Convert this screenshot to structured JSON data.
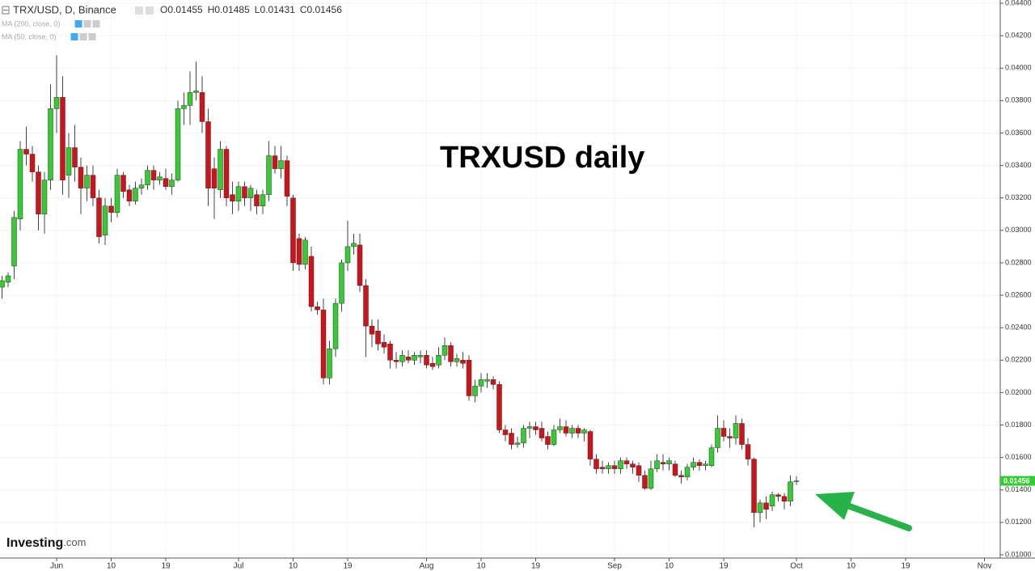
{
  "chart_data": {
    "type": "candlestick",
    "header": {
      "symbol": "TRX/USD, D, Binance",
      "ohlc": [
        "O0.01455",
        "H0.01485",
        "L0.01431",
        "C0.01456"
      ]
    },
    "indicators": [
      "MA (200, close, 0)",
      "MA (50, close, 0)"
    ],
    "annotation": "TRXUSD daily",
    "logo": {
      "name": "Investing",
      "suffix": ".com"
    },
    "last_price_label": "0.01456",
    "up_color": "#33cc33",
    "down_color": "#d0121b",
    "arrow_color": "#27b34a",
    "grid": true,
    "ylim": [
      0.0098,
      0.0442
    ],
    "yticks": [
      {
        "value": 0.044,
        "label": "0.04400"
      },
      {
        "value": 0.042,
        "label": "0.04200"
      },
      {
        "value": 0.04,
        "label": "0.04000"
      },
      {
        "value": 0.038,
        "label": "0.03800"
      },
      {
        "value": 0.036,
        "label": "0.03600"
      },
      {
        "value": 0.034,
        "label": "0.03400"
      },
      {
        "value": 0.032,
        "label": "0.03200"
      },
      {
        "value": 0.03,
        "label": "0.03000"
      },
      {
        "value": 0.028,
        "label": "0.02800"
      },
      {
        "value": 0.026,
        "label": "0.02600"
      },
      {
        "value": 0.024,
        "label": "0.02400"
      },
      {
        "value": 0.022,
        "label": "0.02200"
      },
      {
        "value": 0.02,
        "label": "0.02000"
      },
      {
        "value": 0.018,
        "label": "0.01800"
      },
      {
        "value": 0.016,
        "label": "0.01600"
      },
      {
        "value": 0.014,
        "label": "0.01400"
      },
      {
        "value": 0.012,
        "label": "0.01200"
      },
      {
        "value": 0.01,
        "label": "0.01000"
      }
    ],
    "categories": [
      null,
      null,
      null,
      null,
      null,
      null,
      null,
      null,
      null,
      "Jun",
      null,
      null,
      null,
      null,
      null,
      null,
      null,
      null,
      "10",
      null,
      null,
      null,
      null,
      null,
      null,
      null,
      null,
      "19",
      null,
      null,
      null,
      null,
      null,
      null,
      null,
      null,
      null,
      null,
      null,
      "Jul",
      null,
      null,
      null,
      null,
      null,
      null,
      null,
      null,
      "10",
      null,
      null,
      null,
      null,
      null,
      null,
      null,
      null,
      "19",
      null,
      null,
      null,
      null,
      null,
      null,
      null,
      null,
      null,
      null,
      null,
      null,
      "Aug",
      null,
      null,
      null,
      null,
      null,
      null,
      null,
      null,
      "10",
      null,
      null,
      null,
      null,
      null,
      null,
      null,
      null,
      "19",
      null,
      null,
      null,
      null,
      null,
      null,
      null,
      null,
      null,
      null,
      null,
      null,
      "Sep",
      null,
      null,
      null,
      null,
      null,
      null,
      null,
      null,
      "10",
      null,
      null,
      null,
      null,
      null,
      null,
      null,
      null,
      "19",
      null,
      null,
      null,
      null,
      null,
      null,
      null,
      null,
      null,
      null,
      null,
      "Oct",
      null,
      null,
      null,
      null,
      null,
      null,
      null,
      null,
      "10",
      null,
      null,
      null,
      null,
      null,
      null,
      null,
      null,
      "19",
      null,
      null,
      null,
      null,
      null,
      null,
      null,
      null,
      null,
      null,
      null,
      null,
      "Nov"
    ],
    "open": [
      0.0265,
      0.0268,
      0.0278,
      0.0307,
      0.035,
      0.0347,
      0.0336,
      0.031,
      0.0331,
      0.0375,
      0.0382,
      0.0334,
      0.0351,
      0.0339,
      0.0326,
      0.0334,
      0.032,
      0.0297,
      0.0315,
      0.0311,
      0.0334,
      0.0325,
      0.0318,
      0.0326,
      0.0328,
      0.0337,
      0.0331,
      0.0332,
      0.0327,
      0.0331,
      0.0375,
      0.0377,
      0.0385,
      0.0385,
      0.0367,
      0.0338,
      0.0325,
      0.035,
      0.0322,
      0.0318,
      0.0327,
      0.032,
      0.0322,
      0.0315,
      0.0322,
      0.0346,
      0.0338,
      0.0343,
      0.032,
      0.0295,
      0.0279,
      0.0284,
      0.0253,
      0.0251,
      0.0209,
      0.0227,
      0.0255,
      0.028,
      0.029,
      0.0291,
      0.0266,
      0.0241,
      0.0238,
      0.0231,
      0.023,
      0.022,
      0.0219,
      0.0222,
      0.022,
      0.0222,
      0.0223,
      0.0218,
      0.0217,
      0.0223,
      0.0229,
      0.0219,
      0.022,
      0.022,
      0.0198,
      0.0204,
      0.0207,
      0.0208,
      0.0205,
      0.0177,
      0.0175,
      0.0168,
      0.0169,
      0.0178,
      0.0179,
      0.0178,
      0.0173,
      0.0168,
      0.0177,
      0.0179,
      0.0175,
      0.0178,
      0.0175,
      0.0176,
      0.0159,
      0.0154,
      0.0153,
      0.0155,
      0.0153,
      0.0158,
      0.0156,
      0.0155,
      0.0149,
      0.0141,
      0.0153,
      0.0157,
      0.0156,
      0.0156,
      0.0149,
      0.0148,
      0.0154,
      0.0157,
      0.0155,
      0.0155,
      0.0166,
      0.0178,
      0.0173,
      0.0172,
      0.0181,
      0.0168,
      0.0159,
      0.0126,
      0.0132,
      0.013,
      0.0137,
      0.0136,
      0.0133,
      0.01455,
      null,
      null,
      null,
      null,
      null,
      null,
      null,
      null,
      null,
      null,
      null,
      null,
      null,
      null,
      null,
      null,
      null,
      null,
      null,
      null,
      null,
      null,
      null,
      null,
      null,
      null,
      null,
      null,
      null,
      null,
      null
    ],
    "high": [
      0.0272,
      0.0274,
      0.0312,
      0.0355,
      0.0364,
      0.0352,
      0.034,
      0.0336,
      0.039,
      0.0408,
      0.0395,
      0.036,
      0.0365,
      0.0345,
      0.034,
      0.034,
      0.0325,
      0.032,
      0.032,
      0.0338,
      0.0336,
      0.0328,
      0.033,
      0.0332,
      0.034,
      0.034,
      0.0336,
      0.0338,
      0.0335,
      0.038,
      0.0385,
      0.0398,
      0.0404,
      0.0395,
      0.0375,
      0.0345,
      0.0355,
      0.0352,
      0.033,
      0.033,
      0.033,
      0.0328,
      0.0325,
      0.0325,
      0.0355,
      0.0352,
      0.0352,
      0.0346,
      0.0322,
      0.0298,
      0.0296,
      0.029,
      0.0256,
      0.0258,
      0.0232,
      0.0258,
      0.0282,
      0.0306,
      0.0298,
      0.0298,
      0.027,
      0.0245,
      0.0245,
      0.0236,
      0.0232,
      0.0225,
      0.0226,
      0.0226,
      0.0225,
      0.0226,
      0.0226,
      0.0222,
      0.0228,
      0.0234,
      0.0231,
      0.0224,
      0.0225,
      0.0223,
      0.0208,
      0.0212,
      0.0212,
      0.021,
      0.0207,
      0.018,
      0.0178,
      0.0173,
      0.018,
      0.0182,
      0.0182,
      0.0182,
      0.0176,
      0.018,
      0.0184,
      0.0183,
      0.018,
      0.018,
      0.0178,
      0.0177,
      0.0162,
      0.0158,
      0.0157,
      0.0158,
      0.016,
      0.016,
      0.0158,
      0.0157,
      0.0152,
      0.0158,
      0.0162,
      0.0162,
      0.016,
      0.0158,
      0.0152,
      0.0156,
      0.016,
      0.0159,
      0.0158,
      0.0168,
      0.0186,
      0.0183,
      0.0178,
      0.0186,
      0.0184,
      0.0172,
      0.016,
      0.0134,
      0.0136,
      0.0139,
      0.0138,
      0.0138,
      0.0149,
      0.01485,
      null,
      null,
      null,
      null,
      null,
      null,
      null,
      null,
      null,
      null,
      null,
      null,
      null,
      null,
      null,
      null,
      null,
      null,
      null,
      null,
      null,
      null,
      null,
      null,
      null,
      null,
      null,
      null,
      null,
      null,
      null
    ],
    "low": [
      0.0258,
      0.0265,
      0.027,
      0.03,
      0.034,
      0.033,
      0.03,
      0.0298,
      0.0325,
      0.036,
      0.0322,
      0.032,
      0.033,
      0.031,
      0.0318,
      0.0315,
      0.0292,
      0.0291,
      0.0305,
      0.0308,
      0.032,
      0.0315,
      0.0316,
      0.0322,
      0.0325,
      0.0325,
      0.0328,
      0.0325,
      0.0322,
      0.033,
      0.0365,
      0.0365,
      0.038,
      0.036,
      0.0315,
      0.0307,
      0.032,
      0.0315,
      0.031,
      0.0312,
      0.0315,
      0.0312,
      0.031,
      0.031,
      0.0318,
      0.0335,
      0.0332,
      0.0315,
      0.0275,
      0.0275,
      0.0276,
      0.025,
      0.0248,
      0.0205,
      0.0205,
      0.0222,
      0.025,
      0.0275,
      0.0285,
      0.0262,
      0.0222,
      0.0228,
      0.0226,
      0.0224,
      0.0215,
      0.0215,
      0.0216,
      0.0218,
      0.0217,
      0.0218,
      0.0215,
      0.0214,
      0.0215,
      0.022,
      0.0216,
      0.0216,
      0.0215,
      0.0195,
      0.0194,
      0.02,
      0.0203,
      0.0202,
      0.0175,
      0.017,
      0.0165,
      0.0166,
      0.0166,
      0.0172,
      0.0174,
      0.017,
      0.0165,
      0.0167,
      0.0175,
      0.0173,
      0.0172,
      0.0172,
      0.017,
      0.0155,
      0.015,
      0.015,
      0.015,
      0.015,
      0.015,
      0.0153,
      0.015,
      0.0145,
      0.014,
      0.014,
      0.0151,
      0.0152,
      0.0152,
      0.0148,
      0.0144,
      0.0146,
      0.0152,
      0.0152,
      0.0152,
      0.0154,
      0.0163,
      0.017,
      0.0166,
      0.0168,
      0.0165,
      0.0155,
      0.0117,
      0.012,
      0.0122,
      0.0127,
      0.0133,
      0.0128,
      0.013,
      0.01431,
      null,
      null,
      null,
      null,
      null,
      null,
      null,
      null,
      null,
      null,
      null,
      null,
      null,
      null,
      null,
      null,
      null,
      null,
      null,
      null,
      null,
      null,
      null,
      null,
      null,
      null,
      null,
      null,
      null,
      null,
      null
    ],
    "close": [
      0.0269,
      0.0272,
      0.0308,
      0.035,
      0.0347,
      0.0336,
      0.031,
      0.0331,
      0.0375,
      0.0382,
      0.0331,
      0.0351,
      0.0339,
      0.0326,
      0.0334,
      0.032,
      0.0296,
      0.0315,
      0.0311,
      0.0334,
      0.0324,
      0.0318,
      0.0326,
      0.0328,
      0.0337,
      0.0331,
      0.0333,
      0.0327,
      0.0331,
      0.0375,
      0.0377,
      0.0385,
      0.0386,
      0.0367,
      0.0326,
      0.0326,
      0.035,
      0.032,
      0.0318,
      0.0327,
      0.032,
      0.0326,
      0.0315,
      0.0322,
      0.0346,
      0.0338,
      0.0343,
      0.0321,
      0.028,
      0.0279,
      0.0294,
      0.0253,
      0.0251,
      0.0209,
      0.0227,
      0.0255,
      0.028,
      0.029,
      0.0292,
      0.0266,
      0.0241,
      0.0236,
      0.023,
      0.0228,
      0.022,
      0.0219,
      0.0223,
      0.022,
      0.0223,
      0.0223,
      0.0217,
      0.0216,
      0.0223,
      0.0229,
      0.0219,
      0.0221,
      0.0218,
      0.0198,
      0.0204,
      0.0208,
      0.0208,
      0.0205,
      0.0177,
      0.0174,
      0.0168,
      0.0169,
      0.0178,
      0.0179,
      0.0177,
      0.0172,
      0.0168,
      0.0177,
      0.0179,
      0.0175,
      0.0178,
      0.0175,
      0.0177,
      0.0159,
      0.0153,
      0.0153,
      0.0155,
      0.0153,
      0.0158,
      0.0156,
      0.0154,
      0.0149,
      0.0141,
      0.0153,
      0.0158,
      0.0156,
      0.0158,
      0.0149,
      0.0148,
      0.0154,
      0.0157,
      0.0155,
      0.0156,
      0.0166,
      0.0178,
      0.0173,
      0.0172,
      0.0181,
      0.0168,
      0.0159,
      0.0126,
      0.0132,
      0.0128,
      0.0137,
      0.0136,
      0.0133,
      0.0145,
      0.01456,
      null,
      null,
      null,
      null,
      null,
      null,
      null,
      null,
      null,
      null,
      null,
      null,
      null,
      null,
      null,
      null,
      null,
      null,
      null,
      null,
      null,
      null,
      null,
      null,
      null,
      null,
      null,
      null,
      null,
      null,
      null
    ]
  }
}
